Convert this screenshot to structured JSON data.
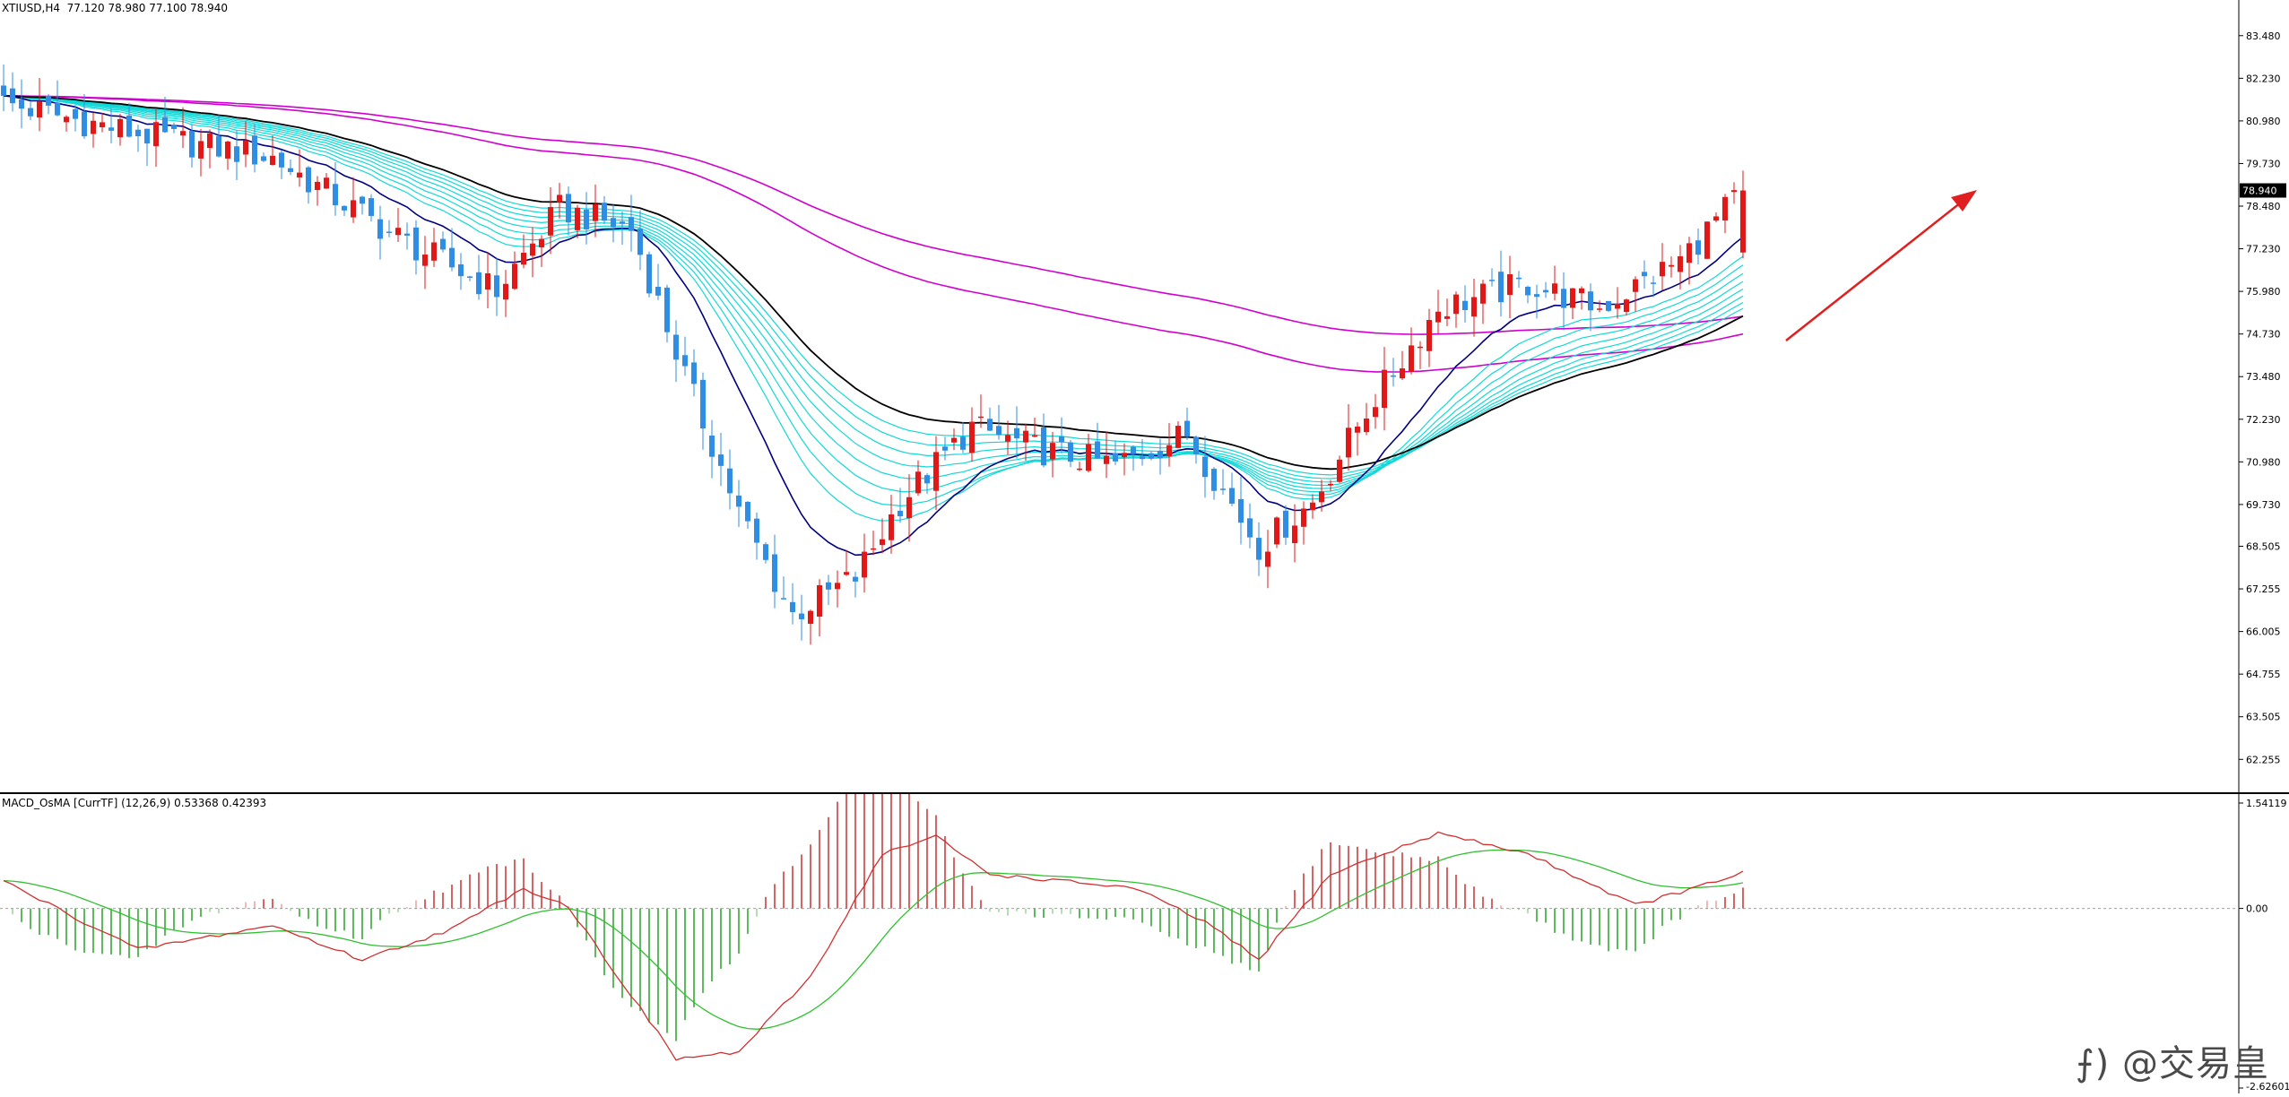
{
  "header": {
    "symbol": "XTIUSD,H4",
    "ohlc": "77.120 78.980 77.100 78.940",
    "subwindow_label": "MACD_OsMA [CurrTF] (12,26,9) 0.53368 0.42393"
  },
  "watermark": "⨍) @交易皇",
  "colors": {
    "bull": "#e01818",
    "bear": "#2f8de4",
    "ema_fast": "#000080",
    "ema_ribbon": "#12d8d8",
    "ema_black": "#000000",
    "ema_slow": "#d000d0",
    "macd_main": "#d03030",
    "macd_signal": "#30c030",
    "hist_pos": "#c83232",
    "hist_neg": "#2aa02a",
    "arrow": "#e02020",
    "price_box": "#000000"
  },
  "chart_data": [
    {
      "type": "candlestick",
      "title": "XTIUSD,H4",
      "ylim": [
        61.5,
        84.0
      ],
      "y_ticks": [
        "83.480",
        "82.230",
        "80.980",
        "79.730",
        "78.480",
        "77.230",
        "75.980",
        "74.730",
        "73.480",
        "72.230",
        "70.980",
        "69.730",
        "68.505",
        "67.255",
        "66.005",
        "64.755",
        "63.505",
        "62.255"
      ],
      "current_price": "78.940",
      "overlays": [
        "EMA ribbon (cyan)",
        "EMA fast (navy)",
        "EMA (black)",
        "EMA slow (magenta) x2"
      ],
      "annotation": "up-arrow",
      "trend_anchors": [
        [
          0,
          81.5
        ],
        [
          15,
          80.6
        ],
        [
          30,
          79.9
        ],
        [
          45,
          77.4
        ],
        [
          55,
          76.0
        ],
        [
          62,
          78.4
        ],
        [
          70,
          77.8
        ],
        [
          76,
          73.5
        ],
        [
          82,
          69.5
        ],
        [
          88,
          66.5
        ],
        [
          95,
          67.6
        ],
        [
          100,
          69.8
        ],
        [
          108,
          72.0
        ],
        [
          116,
          71.3
        ],
        [
          124,
          70.9
        ],
        [
          132,
          71.8
        ],
        [
          140,
          68.5
        ],
        [
          146,
          69.8
        ],
        [
          152,
          72.5
        ],
        [
          160,
          75.5
        ],
        [
          170,
          76.2
        ],
        [
          178,
          75.5
        ],
        [
          187,
          76.9
        ],
        [
          194,
          78.94
        ]
      ]
    },
    {
      "type": "bar",
      "title": "MACD_OsMA [CurrTF] (12,26,9)",
      "values_label": "0.53368 0.42393",
      "ylim": [
        -2.626,
        1.54119
      ],
      "y_ticks": [
        "1.54119",
        "0.00",
        "-2.62601"
      ],
      "anchors": [
        [
          0,
          0.4
        ],
        [
          15,
          -0.6
        ],
        [
          30,
          -0.25
        ],
        [
          40,
          -0.75
        ],
        [
          50,
          -0.3
        ],
        [
          58,
          0.3
        ],
        [
          63,
          0.03
        ],
        [
          68,
          -0.9
        ],
        [
          75,
          -2.2
        ],
        [
          82,
          -2.1
        ],
        [
          90,
          -1.0
        ],
        [
          98,
          0.8
        ],
        [
          104,
          1.05
        ],
        [
          110,
          0.5
        ],
        [
          118,
          0.4
        ],
        [
          126,
          0.3
        ],
        [
          134,
          -0.2
        ],
        [
          140,
          -0.75
        ],
        [
          148,
          0.5
        ],
        [
          160,
          1.1
        ],
        [
          170,
          0.8
        ],
        [
          182,
          0.05
        ],
        [
          190,
          0.35
        ],
        [
          194,
          0.53
        ]
      ]
    }
  ]
}
